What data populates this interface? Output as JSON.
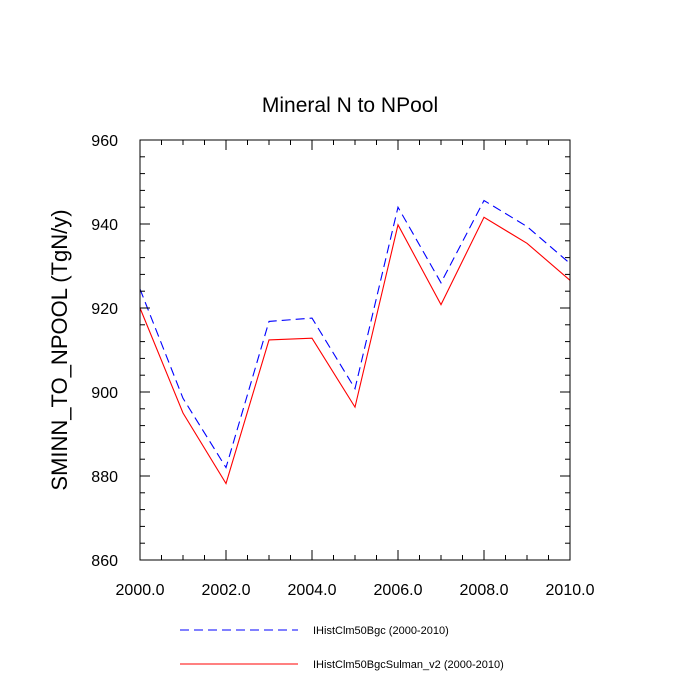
{
  "chart_data": {
    "type": "line",
    "title": "Mineral N to NPool",
    "xlabel": "",
    "ylabel": "SMINN_TO_NPOOL  (TgN/y)",
    "xlim": [
      2000,
      2010
    ],
    "ylim": [
      860,
      960
    ],
    "xticks": [
      2000,
      2002,
      2004,
      2006,
      2008,
      2010
    ],
    "xtick_labels": [
      "2000.0",
      "2002.0",
      "2004.0",
      "2006.0",
      "2008.0",
      "2010.0"
    ],
    "yticks": [
      860,
      880,
      900,
      920,
      940,
      960
    ],
    "ytick_labels": [
      "860",
      "880",
      "900",
      "920",
      "940",
      "960"
    ],
    "grid": false,
    "legend_position": "bottom",
    "x": [
      2000,
      2001,
      2002,
      2003,
      2004,
      2005,
      2006,
      2007,
      2008,
      2009,
      2010
    ],
    "series": [
      {
        "name": "IHistClm50Bgc (2000-2010)",
        "color": "#0000ff",
        "style": "dashed",
        "values": [
          924.5,
          898.5,
          882.0,
          916.8,
          917.6,
          900.8,
          944.0,
          926.0,
          945.6,
          939.4,
          930.6
        ]
      },
      {
        "name": "IHistClm50BgcSulman_v2 (2000-2010)",
        "color": "#ff0000",
        "style": "solid",
        "values": [
          920.0,
          895.0,
          878.2,
          912.4,
          912.8,
          896.4,
          939.8,
          920.8,
          941.6,
          935.4,
          926.6
        ]
      }
    ]
  }
}
